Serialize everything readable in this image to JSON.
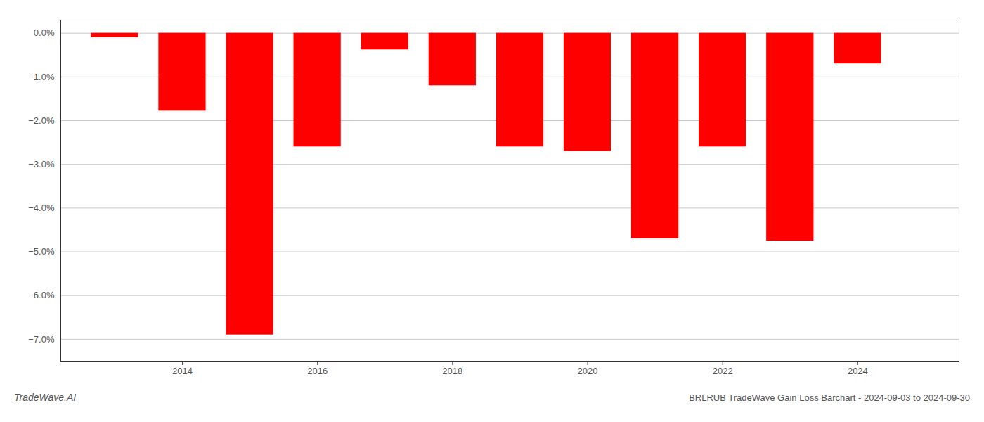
{
  "chart_data": {
    "type": "bar",
    "title": "BRLRUB TradeWave Gain Loss Barchart - 2024-09-03 to 2024-09-30",
    "annotations": [
      "TradeWave.AI"
    ],
    "x": [
      2013,
      2014,
      2015,
      2016,
      2017,
      2018,
      2019,
      2020,
      2021,
      2022,
      2023,
      2024
    ],
    "values": [
      -0.001,
      -0.0178,
      -0.069,
      -0.026,
      -0.0038,
      -0.012,
      -0.026,
      -0.027,
      -0.047,
      -0.026,
      -0.0475,
      -0.007
    ],
    "color": "#ff0000",
    "xlim": [
      2012.2,
      2025.5
    ],
    "xticks": [
      2014,
      2016,
      2018,
      2020,
      2022,
      2024
    ],
    "ylim": [
      -0.075,
      0.003
    ],
    "yticks": [
      {
        "value": 0.0,
        "label": "0.0%"
      },
      {
        "value": -0.01,
        "label": "−1.0%"
      },
      {
        "value": -0.02,
        "label": "−2.0%"
      },
      {
        "value": -0.03,
        "label": "−3.0%"
      },
      {
        "value": -0.04,
        "label": "−4.0%"
      },
      {
        "value": -0.05,
        "label": "−5.0%"
      },
      {
        "value": -0.06,
        "label": "−6.0%"
      },
      {
        "value": -0.07,
        "label": "−7.0%"
      }
    ],
    "grid": true
  }
}
